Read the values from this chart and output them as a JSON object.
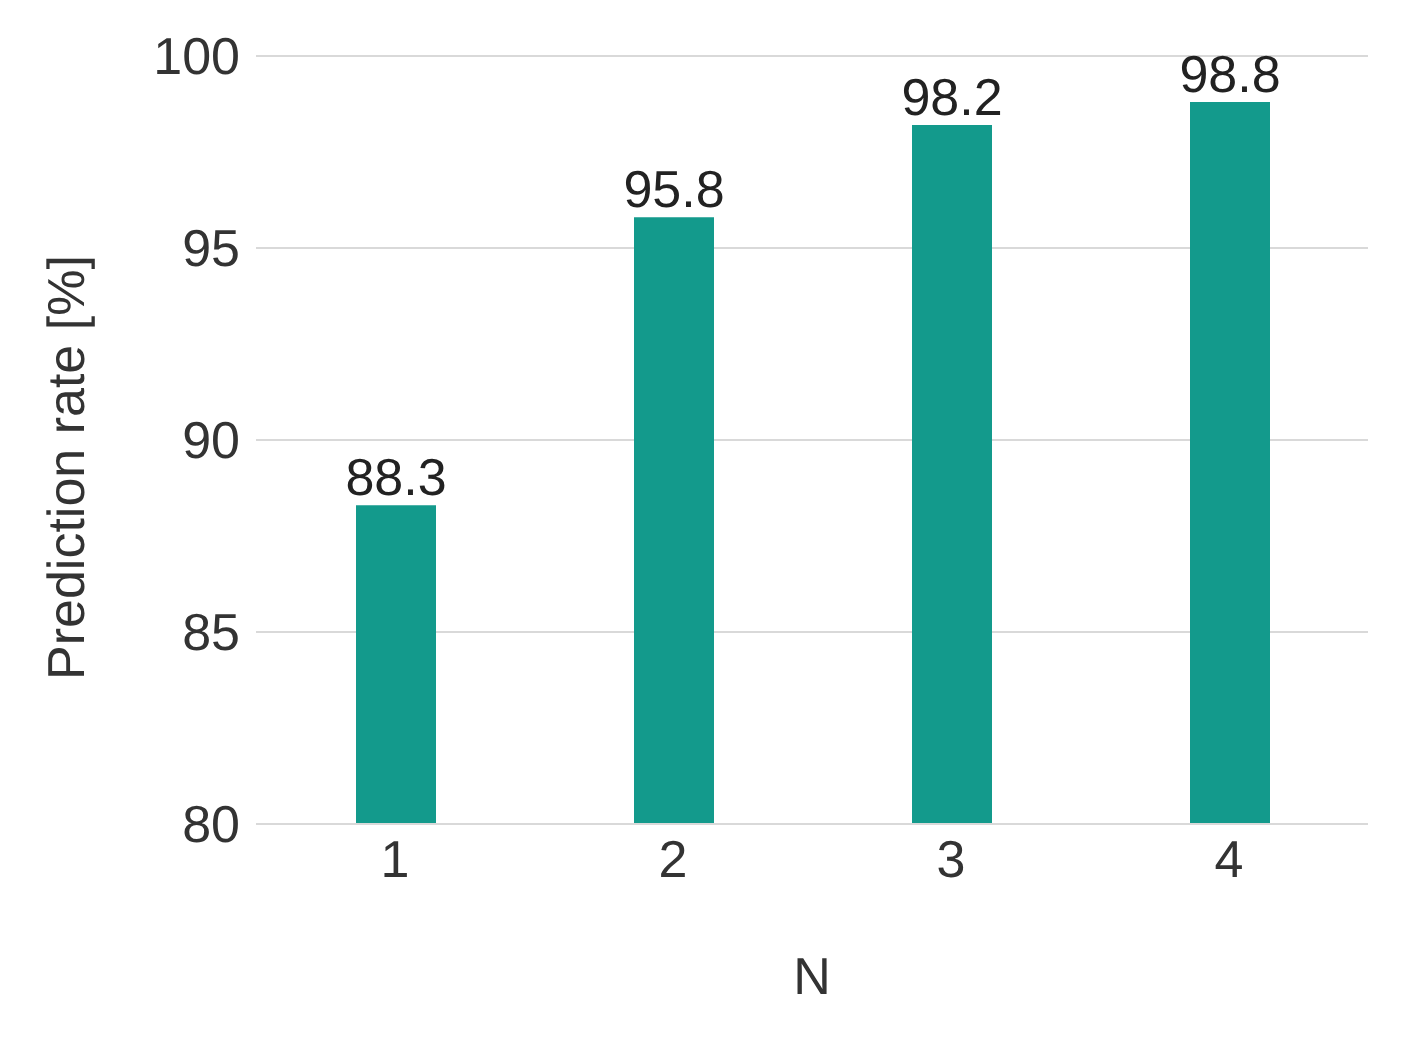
{
  "chart_data": {
    "type": "bar",
    "xlabel": "N",
    "ylabel": "Prediction rate [%]",
    "categories": [
      "1",
      "2",
      "3",
      "4"
    ],
    "values": [
      88.3,
      95.8,
      98.2,
      98.8
    ],
    "color": "#139a8c",
    "ylim": [
      80,
      100
    ],
    "yticks": [
      80,
      85,
      90,
      95,
      100
    ],
    "grid": "y",
    "data_labels": true
  }
}
